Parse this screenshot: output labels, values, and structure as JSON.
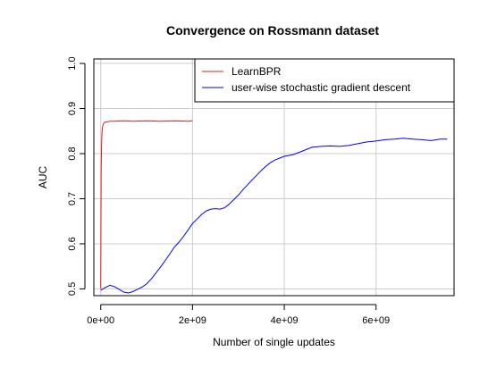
{
  "chart_data": {
    "type": "line",
    "title": "Convergence on Rossmann dataset",
    "xlabel": "Number of single updates",
    "ylabel": "AUC",
    "xlim": [
      -150000000,
      7700000000
    ],
    "ylim": [
      0.485,
      1.01
    ],
    "xticks": [
      0,
      2000000000,
      4000000000,
      6000000000
    ],
    "xtick_labels": [
      "0e+00",
      "2e+09",
      "4e+09",
      "6e+09"
    ],
    "yticks": [
      0.5,
      0.6,
      0.7,
      0.8,
      0.9,
      1.0
    ],
    "ytick_labels": [
      "0.5",
      "0.6",
      "0.7",
      "0.8",
      "0.9",
      "1.0"
    ],
    "grid": true,
    "legend_position": "top-right",
    "series": [
      {
        "name": "LearnBPR",
        "color": "#e41a1c",
        "x": [
          0,
          10000000,
          20000000,
          30000000,
          40000000,
          60000000,
          80000000,
          100000000,
          150000000,
          200000000,
          300000000,
          500000000,
          700000000,
          1000000000,
          1300000000,
          1600000000,
          1900000000,
          2000000000
        ],
        "y": [
          0.5,
          0.765,
          0.825,
          0.85,
          0.86,
          0.866,
          0.869,
          0.87,
          0.871,
          0.872,
          0.872,
          0.873,
          0.872,
          0.873,
          0.872,
          0.873,
          0.872,
          0.873
        ]
      },
      {
        "name": "user-wise stochastic gradient descent",
        "color": "#0000ff",
        "x": [
          0,
          100000000,
          200000000,
          300000000,
          400000000,
          500000000,
          600000000,
          700000000,
          800000000,
          900000000,
          1000000000,
          1100000000,
          1200000000,
          1300000000,
          1400000000,
          1500000000,
          1600000000,
          1700000000,
          1800000000,
          1900000000,
          2000000000,
          2100000000,
          2200000000,
          2300000000,
          2400000000,
          2500000000,
          2600000000,
          2700000000,
          2800000000,
          2900000000,
          3000000000,
          3100000000,
          3200000000,
          3300000000,
          3400000000,
          3500000000,
          3600000000,
          3700000000,
          3800000000,
          3900000000,
          4000000000,
          4200000000,
          4400000000,
          4600000000,
          4800000000,
          5000000000,
          5200000000,
          5400000000,
          5600000000,
          5800000000,
          6000000000,
          6200000000,
          6400000000,
          6600000000,
          6800000000,
          7000000000,
          7200000000,
          7400000000,
          7550000000
        ],
        "y": [
          0.497,
          0.503,
          0.508,
          0.505,
          0.499,
          0.493,
          0.491,
          0.494,
          0.499,
          0.504,
          0.511,
          0.522,
          0.535,
          0.548,
          0.562,
          0.577,
          0.592,
          0.603,
          0.616,
          0.63,
          0.645,
          0.655,
          0.665,
          0.673,
          0.677,
          0.678,
          0.677,
          0.68,
          0.688,
          0.698,
          0.708,
          0.72,
          0.731,
          0.742,
          0.752,
          0.763,
          0.772,
          0.78,
          0.786,
          0.79,
          0.794,
          0.798,
          0.806,
          0.814,
          0.816,
          0.817,
          0.816,
          0.818,
          0.822,
          0.826,
          0.828,
          0.831,
          0.832,
          0.834,
          0.832,
          0.831,
          0.829,
          0.832,
          0.832
        ]
      }
    ]
  }
}
